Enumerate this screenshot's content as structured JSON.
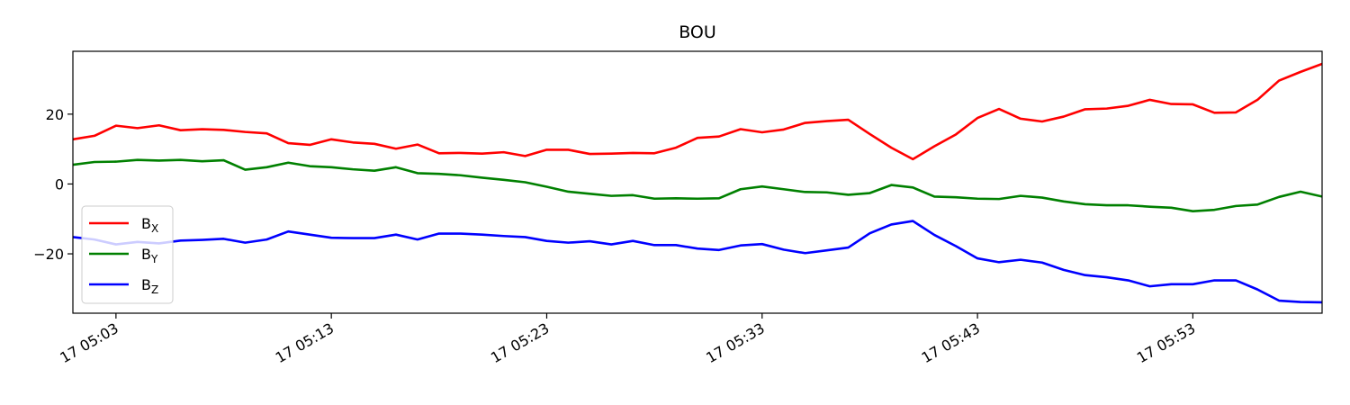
{
  "chart_data": {
    "type": "line",
    "title": "BOU",
    "xlabel": "",
    "ylabel": "",
    "x_ticks": [
      "17 05:03",
      "17 05:13",
      "17 05:23",
      "17 05:33",
      "17 05:43",
      "17 05:53"
    ],
    "x_tick_minutes": [
      3,
      13,
      23,
      33,
      43,
      53
    ],
    "xlim": [
      1,
      59
    ],
    "ylim": [
      -37,
      38
    ],
    "y_ticks": [
      -20,
      0,
      20
    ],
    "y_tick_labels": [
      "−20",
      "0",
      "20"
    ],
    "grid": false,
    "legend": "lower-left",
    "x": [
      1,
      2,
      3,
      4,
      5,
      6,
      7,
      8,
      9,
      10,
      11,
      12,
      13,
      14,
      15,
      16,
      17,
      18,
      19,
      20,
      21,
      22,
      23,
      24,
      25,
      26,
      27,
      28,
      29,
      30,
      31,
      32,
      33,
      34,
      35,
      36,
      37,
      38,
      39,
      40,
      41,
      42,
      43,
      44,
      45,
      46,
      47,
      48,
      49,
      50,
      51,
      52,
      53,
      54,
      55,
      56,
      57,
      58,
      59
    ],
    "series": [
      {
        "name": "B",
        "subscript": "X",
        "color": "#ff0000",
        "values": [
          12.8,
          13.8,
          16.7,
          16.0,
          16.8,
          15.4,
          15.7,
          15.5,
          14.9,
          14.5,
          11.7,
          11.2,
          12.8,
          11.9,
          11.5,
          10.1,
          11.3,
          8.8,
          8.9,
          8.7,
          9.1,
          8.0,
          9.8,
          9.8,
          8.6,
          8.7,
          8.9,
          8.8,
          10.4,
          13.2,
          13.6,
          15.7,
          14.8,
          15.6,
          17.5,
          18.0,
          18.4,
          14.3,
          10.4,
          7.1,
          10.8,
          14.2,
          18.9,
          21.5,
          18.7,
          17.9,
          19.3,
          21.4,
          21.6,
          22.4,
          24.1,
          22.9,
          22.8,
          20.4,
          20.5,
          24.1,
          29.6,
          32.1,
          34.4
        ]
      },
      {
        "name": "B",
        "subscript": "Y",
        "color": "#008000",
        "values": [
          5.5,
          6.3,
          6.4,
          6.9,
          6.7,
          6.9,
          6.5,
          6.8,
          4.1,
          4.8,
          6.1,
          5.1,
          4.8,
          4.2,
          3.8,
          4.8,
          3.1,
          2.9,
          2.5,
          1.8,
          1.2,
          0.5,
          -0.8,
          -2.2,
          -2.8,
          -3.4,
          -3.2,
          -4.2,
          -4.1,
          -4.2,
          -4.1,
          -1.5,
          -0.7,
          -1.5,
          -2.3,
          -2.4,
          -3.1,
          -2.6,
          -0.3,
          -1.0,
          -3.6,
          -3.8,
          -4.2,
          -4.3,
          -3.4,
          -3.9,
          -5.0,
          -5.8,
          -6.1,
          -6.1,
          -6.5,
          -6.8,
          -7.8,
          -7.4,
          -6.3,
          -5.9,
          -3.7,
          -2.2,
          -3.6
        ]
      },
      {
        "name": "B",
        "subscript": "Z",
        "color": "#0000ff",
        "values": [
          -15.2,
          -15.9,
          -17.3,
          -16.6,
          -17.0,
          -16.2,
          -16.0,
          -15.7,
          -16.8,
          -15.9,
          -13.6,
          -14.5,
          -15.4,
          -15.5,
          -15.5,
          -14.5,
          -15.9,
          -14.2,
          -14.2,
          -14.5,
          -14.9,
          -15.2,
          -16.3,
          -16.8,
          -16.4,
          -17.3,
          -16.3,
          -17.5,
          -17.5,
          -18.5,
          -18.9,
          -17.6,
          -17.2,
          -18.8,
          -19.8,
          -19.0,
          -18.2,
          -14.1,
          -11.6,
          -10.6,
          -14.6,
          -17.8,
          -21.3,
          -22.4,
          -21.7,
          -22.5,
          -24.6,
          -26.1,
          -26.7,
          -27.6,
          -29.3,
          -28.7,
          -28.7,
          -27.6,
          -27.6,
          -30.2,
          -33.4,
          -33.8,
          -33.9
        ]
      }
    ]
  }
}
